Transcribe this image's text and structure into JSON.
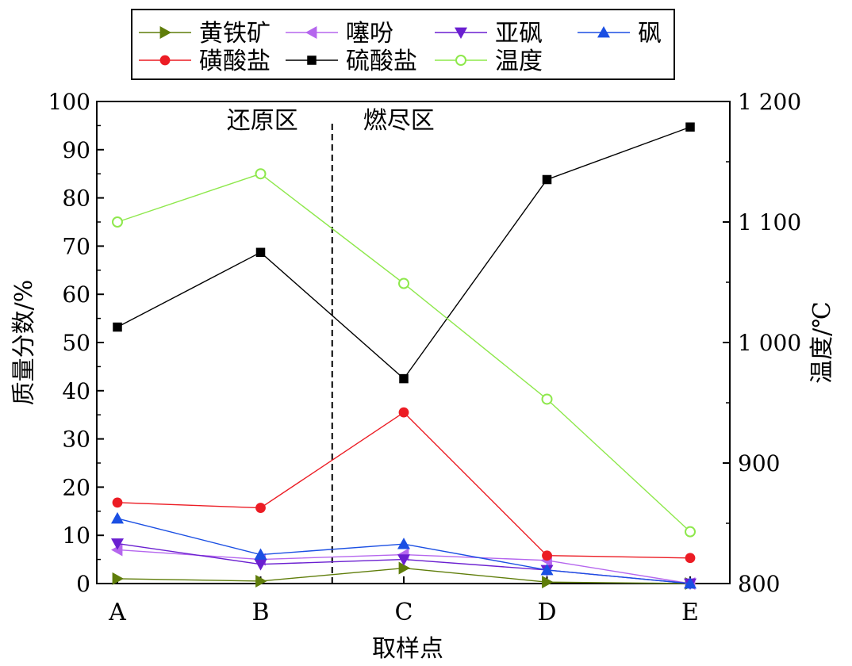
{
  "chart_data": {
    "type": "line",
    "categories": [
      "A",
      "B",
      "C",
      "D",
      "E"
    ],
    "xlabel": "取样点",
    "ylabel": "质量分数/%",
    "y2label": "温度/℃",
    "ylim": [
      0,
      100
    ],
    "yticks": [
      "0",
      "10",
      "20",
      "30",
      "40",
      "50",
      "60",
      "70",
      "80",
      "90",
      "100"
    ],
    "y2lim": [
      800,
      1200
    ],
    "y2ticks": [
      "800",
      "900",
      "1 000",
      "1 100",
      "1 200"
    ],
    "regions": [
      "还原区",
      "燃尽区"
    ],
    "divider_after_category": 1.5,
    "legend_position": "top",
    "series": [
      {
        "name": "黄铁矿",
        "axis": "left",
        "marker": "triangle-right",
        "color": "#5f7d0a",
        "values": [
          1.0,
          0.5,
          3.2,
          0.3,
          0.0
        ]
      },
      {
        "name": "噻吩",
        "axis": "left",
        "marker": "triangle-left",
        "color": "#b566ee",
        "values": [
          7.0,
          5.0,
          6.0,
          4.8,
          0.0
        ]
      },
      {
        "name": "亚砜",
        "axis": "left",
        "marker": "triangle-down",
        "color": "#6a1fd0",
        "values": [
          8.3,
          4.0,
          5.0,
          2.8,
          0.0
        ]
      },
      {
        "name": "砜",
        "axis": "left",
        "marker": "triangle-up",
        "color": "#1b4fe3",
        "values": [
          13.5,
          6.0,
          8.2,
          2.8,
          0.0
        ]
      },
      {
        "name": "磺酸盐",
        "axis": "left",
        "marker": "circle",
        "color": "#ec1c24",
        "values": [
          16.8,
          15.7,
          35.5,
          5.8,
          5.3
        ]
      },
      {
        "name": "硫酸盐",
        "axis": "left",
        "marker": "square",
        "color": "#000000",
        "values": [
          53.2,
          68.7,
          42.5,
          83.8,
          94.7
        ]
      },
      {
        "name": "温度",
        "axis": "right",
        "marker": "circle-open",
        "color": "#8ee84c",
        "values": [
          1100,
          1140,
          1049,
          953,
          843
        ]
      }
    ]
  }
}
